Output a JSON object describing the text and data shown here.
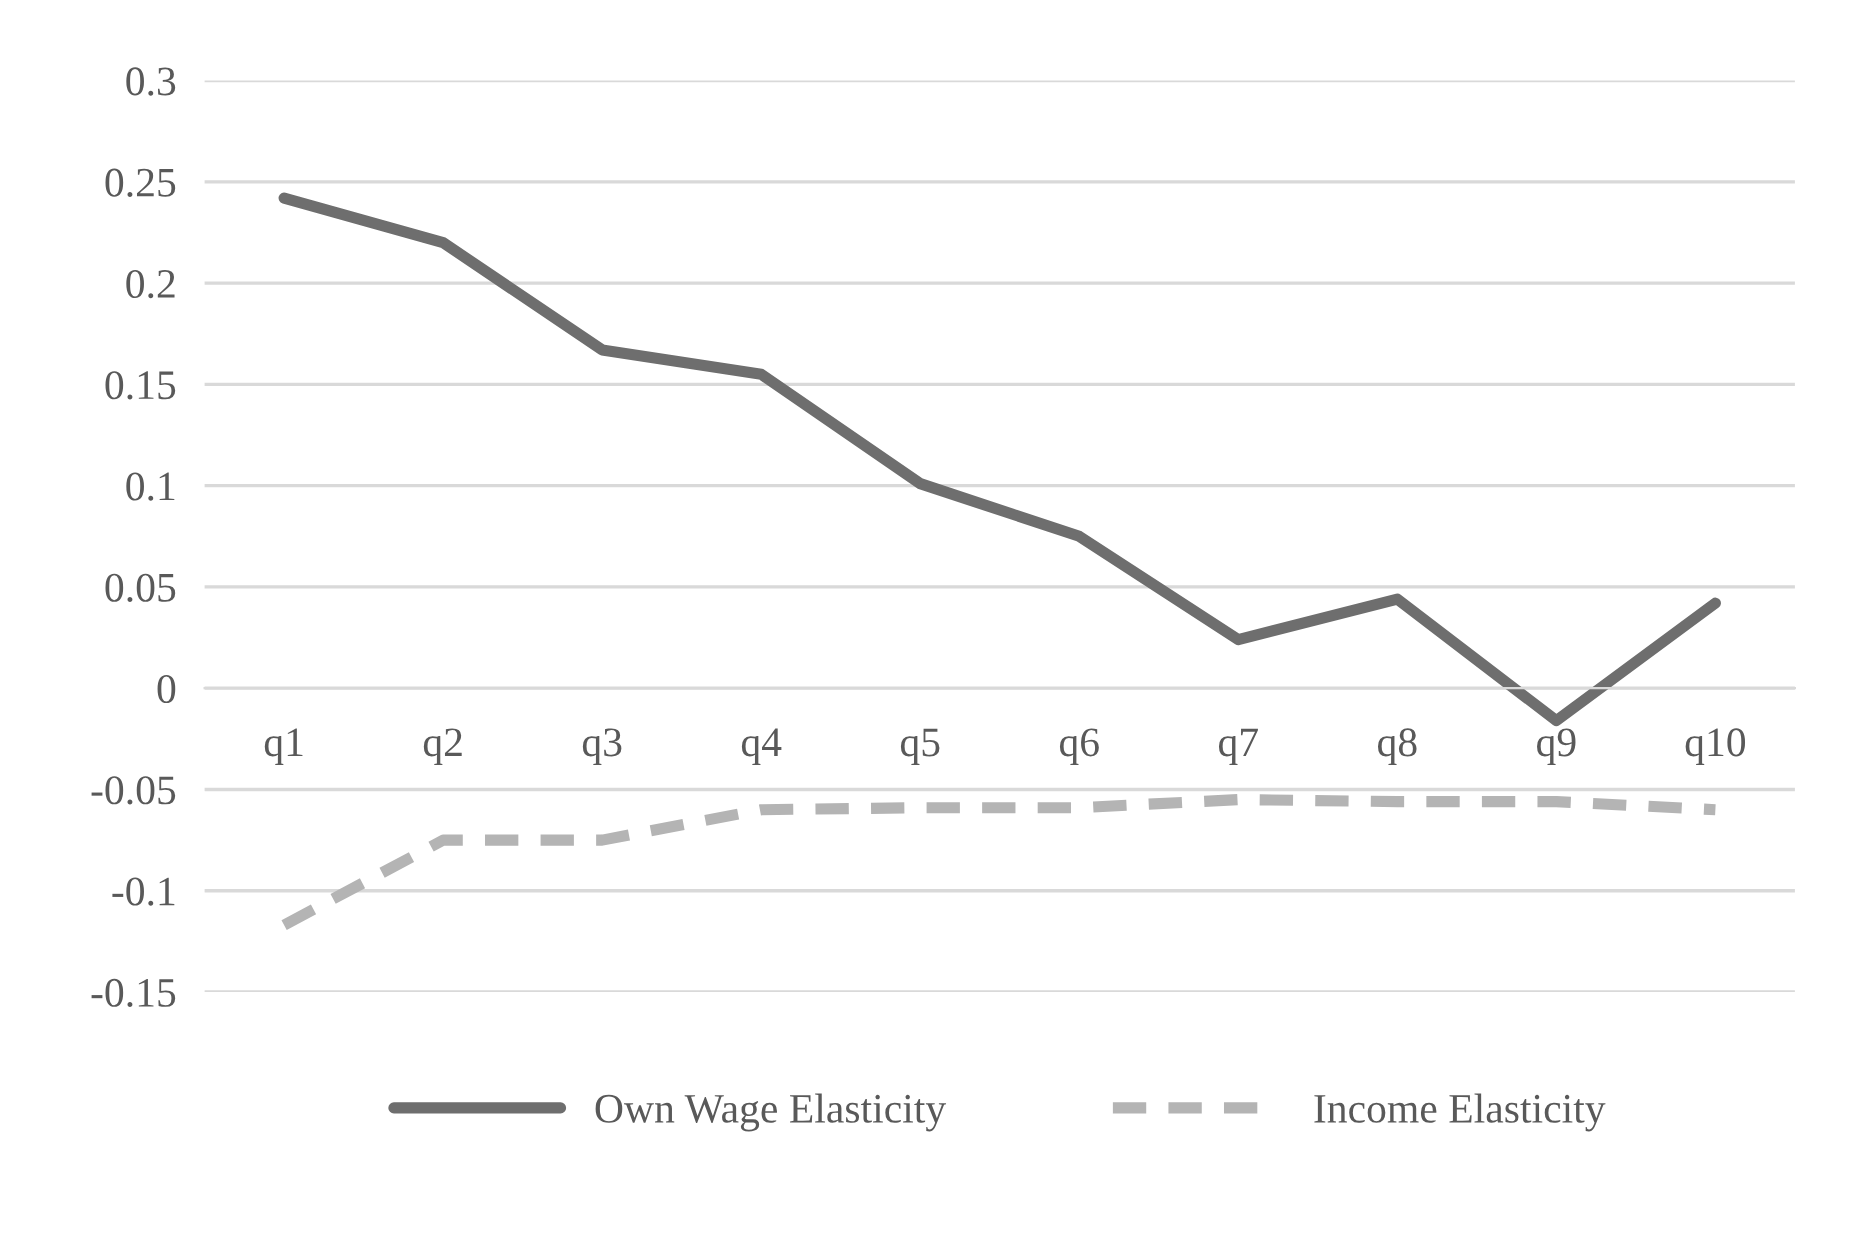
{
  "chart_data": {
    "type": "line",
    "categories": [
      "q1",
      "q2",
      "q3",
      "q4",
      "q5",
      "q6",
      "q7",
      "q8",
      "q9",
      "q10"
    ],
    "series": [
      {
        "name": "Own Wage Elasticity",
        "color": "#6e6e6e",
        "line_style": "solid",
        "values": [
          0.242,
          0.22,
          0.167,
          0.155,
          0.101,
          0.075,
          0.024,
          0.044,
          -0.016,
          0.042
        ]
      },
      {
        "name": "Income Elasticity",
        "color": "#b4b4b4",
        "line_style": "dashed",
        "values": [
          -0.117,
          -0.075,
          -0.075,
          -0.06,
          -0.059,
          -0.059,
          -0.055,
          -0.056,
          -0.056,
          -0.06
        ]
      }
    ],
    "ylim": [
      -0.15,
      0.3
    ],
    "yticks": [
      -0.15,
      -0.1,
      -0.05,
      0,
      0.05,
      0.1,
      0.15,
      0.2,
      0.25,
      0.3
    ],
    "grid": "y",
    "legend": "bottom",
    "marker": "none"
  }
}
